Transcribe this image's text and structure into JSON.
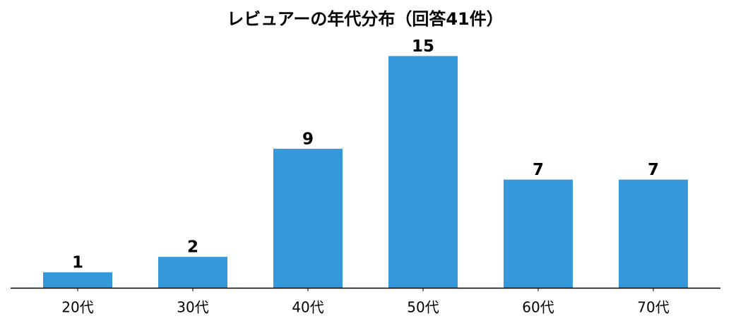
{
  "chart_data": {
    "type": "bar",
    "title": "レビュアーの年代分布（回答41件）",
    "categories": [
      "20代",
      "30代",
      "40代",
      "50代",
      "60代",
      "70代"
    ],
    "values": [
      1,
      2,
      9,
      15,
      7,
      7
    ],
    "color": "#3598db",
    "ylim": [
      0,
      15.75
    ]
  }
}
